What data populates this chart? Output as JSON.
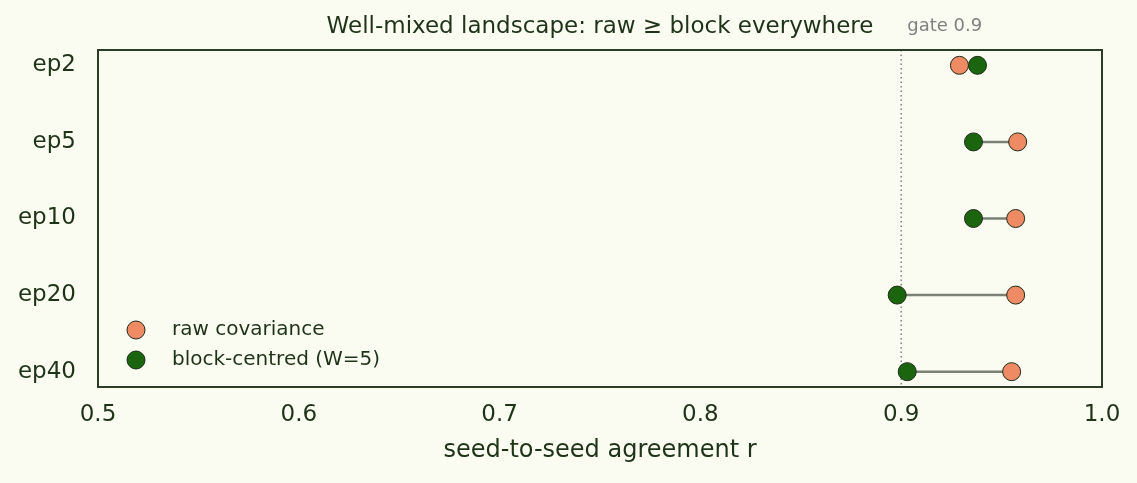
{
  "chart_data": {
    "type": "scatter",
    "orientation": "horizontal",
    "title": "Well-mixed landscape: raw ≥ block everywhere",
    "xlabel": "seed-to-seed agreement r",
    "categories": [
      "ep2",
      "ep5",
      "ep10",
      "ep20",
      "ep40"
    ],
    "series": [
      {
        "name": "raw covariance",
        "color": "#ee8b65",
        "values": [
          0.929,
          0.958,
          0.957,
          0.957,
          0.955
        ]
      },
      {
        "name": "block-centred (W=5)",
        "color": "#1a650e",
        "values": [
          0.938,
          0.936,
          0.936,
          0.898,
          0.903
        ]
      }
    ],
    "xlim": [
      0.5,
      1.0
    ],
    "xticks": [
      0.5,
      0.6,
      0.7,
      0.8,
      0.9,
      {
        "value": 1.0,
        "label": "1.0"
      }
    ],
    "ref_lines": [
      {
        "axis": "x",
        "value": 0.9,
        "label": "gate 0.9",
        "line_style": "dotted",
        "color": "#808080"
      }
    ],
    "grid": false,
    "legend": "bottom left",
    "marker": "circle"
  }
}
